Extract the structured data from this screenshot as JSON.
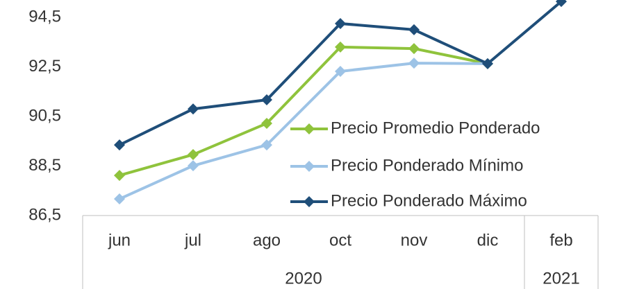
{
  "chart_data": {
    "type": "line",
    "categories": [
      "jun",
      "jul",
      "ago",
      "oct",
      "nov",
      "dic",
      "feb"
    ],
    "groups": [
      {
        "label": "2020",
        "count": 6
      },
      {
        "label": "2021",
        "count": 1
      }
    ],
    "series": [
      {
        "name": "Precio Promedio Ponderado",
        "color": "#8fc33c",
        "values": [
          88.12,
          88.96,
          90.22,
          93.3,
          93.24,
          92.63,
          null
        ]
      },
      {
        "name": "Precio Ponderado Mínimo",
        "color": "#9dc3e6",
        "values": [
          87.17,
          88.51,
          89.35,
          92.32,
          92.65,
          92.63,
          null
        ]
      },
      {
        "name": "Precio Ponderado Máximo",
        "color": "#1f4e79",
        "values": [
          89.35,
          90.8,
          91.17,
          94.25,
          94.0,
          92.63,
          95.14
        ]
      }
    ],
    "ylim": [
      86.5,
      95.2
    ],
    "yticks": [
      {
        "value": 86.5,
        "label": "86,5"
      },
      {
        "value": 88.5,
        "label": "88,5"
      },
      {
        "value": 90.5,
        "label": "90,5"
      },
      {
        "value": 92.5,
        "label": "92,5"
      },
      {
        "value": 94.5,
        "label": "94,5"
      }
    ],
    "legend": "right"
  }
}
